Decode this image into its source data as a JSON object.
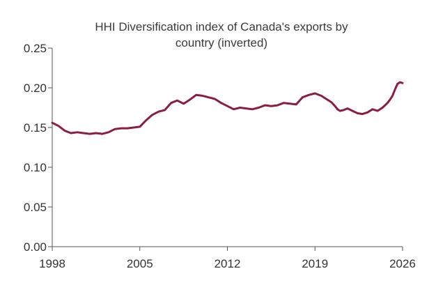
{
  "chart_data": {
    "type": "line",
    "title_lines": [
      "HHI Diversification index of Canada's exports by",
      "country (inverted)"
    ],
    "xlabel": "",
    "ylabel": "",
    "xlim": [
      1998,
      2026
    ],
    "ylim": [
      0,
      0.25
    ],
    "x_ticks": [
      1998,
      2005,
      2012,
      2019,
      2026
    ],
    "x_tick_labels": [
      "1998",
      "2005",
      "2012",
      "2019",
      "2026"
    ],
    "y_ticks": [
      0,
      0.05,
      0.1,
      0.15,
      0.2,
      0.25
    ],
    "y_tick_labels": [
      "0.00",
      "0.05",
      "0.10",
      "0.15",
      "0.20",
      "0.25"
    ],
    "grid": false,
    "legend": "none",
    "line_color": "#8b1e3f",
    "series": [
      {
        "x": [
          1998.0,
          1998.5,
          1999.0,
          1999.5,
          2000.0,
          2000.5,
          2001.0,
          2001.5,
          2002.0,
          2002.5,
          2003.0,
          2003.5,
          2004.0,
          2004.5,
          2005.0,
          2005.5,
          2006.0,
          2006.5,
          2007.0,
          2007.5,
          2008.0,
          2008.5,
          2009.0,
          2009.5,
          2010.0,
          2010.5,
          2011.0,
          2011.5,
          2012.0,
          2012.5,
          2013.0,
          2013.5,
          2014.0,
          2014.5,
          2015.0,
          2015.5,
          2016.0,
          2016.5,
          2017.0,
          2017.5,
          2018.0,
          2018.5,
          2019.0,
          2019.5,
          2020.0,
          2020.3,
          2020.6,
          2020.8,
          2021.0,
          2021.3,
          2021.6,
          2022.0,
          2022.4,
          2022.8,
          2023.2,
          2023.6,
          2024.0,
          2024.4,
          2024.8,
          2025.0,
          2025.2,
          2025.4,
          2025.6,
          2025.8,
          2026.0
        ],
        "values": [
          0.156,
          0.152,
          0.146,
          0.143,
          0.144,
          0.143,
          0.142,
          0.143,
          0.142,
          0.144,
          0.148,
          0.149,
          0.149,
          0.15,
          0.151,
          0.159,
          0.166,
          0.17,
          0.172,
          0.181,
          0.184,
          0.18,
          0.185,
          0.191,
          0.19,
          0.188,
          0.186,
          0.181,
          0.177,
          0.173,
          0.175,
          0.174,
          0.173,
          0.175,
          0.178,
          0.177,
          0.178,
          0.181,
          0.18,
          0.179,
          0.188,
          0.191,
          0.193,
          0.19,
          0.185,
          0.182,
          0.177,
          0.173,
          0.171,
          0.172,
          0.174,
          0.171,
          0.168,
          0.167,
          0.169,
          0.173,
          0.171,
          0.175,
          0.181,
          0.185,
          0.19,
          0.198,
          0.205,
          0.207,
          0.206
        ]
      }
    ]
  }
}
